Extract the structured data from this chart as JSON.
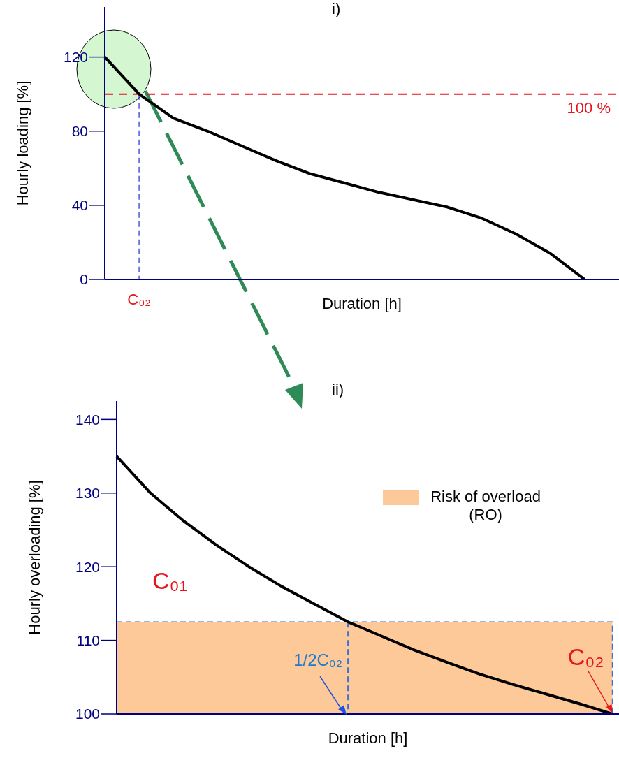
{
  "chart_data": [
    {
      "type": "line",
      "title": "i)",
      "xlabel": "Duration [h]",
      "ylabel": "Hourly loading [%]",
      "tick_labels": "y",
      "categories": [
        null,
        null,
        null,
        null,
        null,
        null,
        null,
        null,
        null,
        null,
        null,
        null,
        null,
        null,
        null
      ],
      "series": [
        {
          "color": "#000000",
          "values": [
            120,
            100,
            87,
            80,
            72,
            64,
            57,
            52,
            47,
            43,
            39,
            33,
            24.5,
            14,
            0
          ]
        }
      ],
      "ylim": [
        0,
        147
      ],
      "yticks": [
        0,
        40,
        80,
        120
      ],
      "ref_lines": [
        {
          "axis": "y",
          "value": 100,
          "label": "100 %",
          "color": "#e8141e",
          "line_style": "dashed"
        }
      ],
      "annotations": [
        {
          "text": "C₀₂",
          "y": 100
        }
      ],
      "marker": "none",
      "line_style": "solid",
      "grid": false
    },
    {
      "type": "line",
      "title": "ii)",
      "xlabel": "Duration [h]",
      "ylabel": "Hourly overloading [%]",
      "tick_labels": "y",
      "categories": [
        null,
        null,
        null,
        null,
        null,
        null,
        null,
        null,
        null,
        null,
        null,
        null,
        null,
        null,
        null,
        null
      ],
      "series": [
        {
          "color": "#000000",
          "values": [
            135,
            130.1,
            126.3,
            123,
            120,
            117.3,
            114.9,
            112.5,
            110.6,
            108.7,
            107,
            105.4,
            104,
            102.7,
            101.4,
            100
          ]
        }
      ],
      "ylim": [
        100,
        142.5
      ],
      "yticks": [
        100,
        110,
        120,
        130,
        140
      ],
      "bands": [
        {
          "axis": "y",
          "from": 100,
          "to": 112.5,
          "label": "Risk of overload (RO)",
          "color": "#fdc998"
        }
      ],
      "annotations": [
        "C₀₁",
        {
          "text": "1/2C₀₂",
          "y": 112.5
        },
        {
          "text": "C₀₂",
          "y": 100
        }
      ],
      "marker": "none",
      "line_style": "solid",
      "grid": false
    }
  ]
}
